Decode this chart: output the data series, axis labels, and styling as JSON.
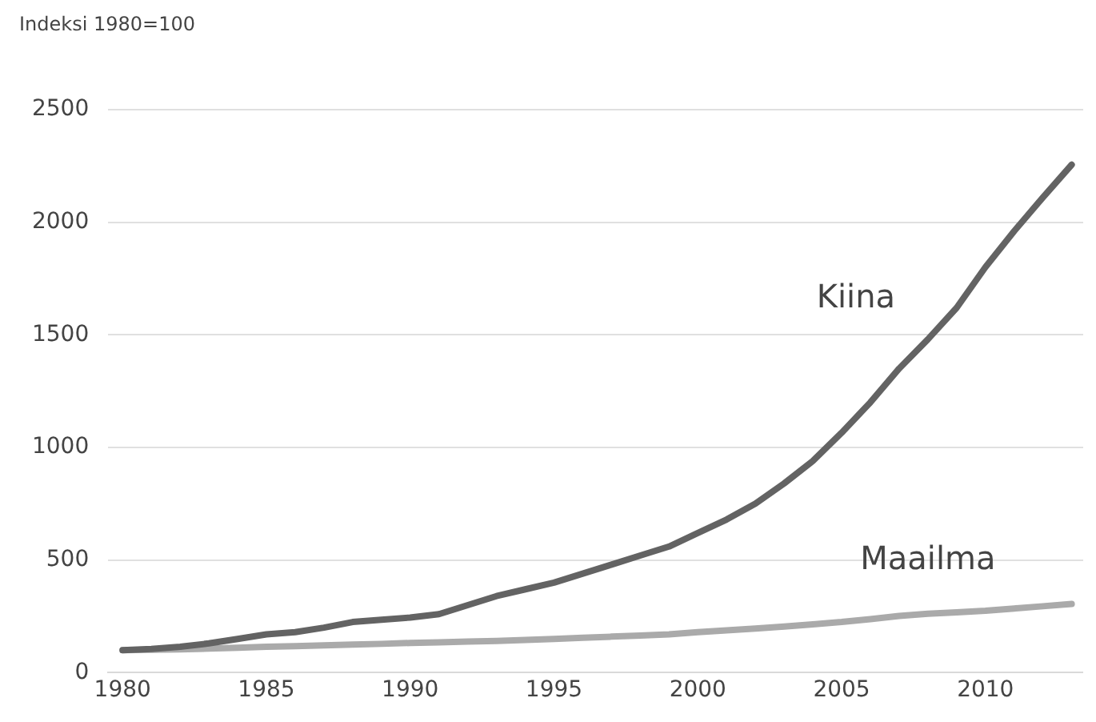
{
  "chart_data": {
    "type": "line",
    "ylabel": "Indeksi 1980=100",
    "x": [
      1980,
      1981,
      1982,
      1983,
      1984,
      1985,
      1986,
      1987,
      1988,
      1989,
      1990,
      1991,
      1992,
      1993,
      1994,
      1995,
      1996,
      1997,
      1998,
      1999,
      2000,
      2001,
      2002,
      2003,
      2004,
      2005,
      2006,
      2007,
      2008,
      2009,
      2010,
      2011,
      2012,
      2013
    ],
    "series": [
      {
        "name": "Kiina",
        "color": "#636363",
        "values": [
          100,
          105,
          115,
          130,
          150,
          170,
          180,
          200,
          225,
          235,
          245,
          260,
          300,
          340,
          370,
          400,
          440,
          480,
          520,
          560,
          620,
          680,
          750,
          840,
          940,
          1065,
          1200,
          1350,
          1480,
          1620,
          1800,
          1960,
          2110,
          2255
        ]
      },
      {
        "name": "Maailma",
        "color": "#aaaaaa",
        "values": [
          100,
          102,
          104,
          107,
          111,
          115,
          118,
          121,
          125,
          128,
          132,
          135,
          138,
          141,
          145,
          150,
          155,
          160,
          165,
          170,
          180,
          188,
          196,
          205,
          215,
          225,
          238,
          252,
          262,
          268,
          275,
          285,
          295,
          305
        ]
      }
    ],
    "xlim": [
      1979.5,
      2013.4
    ],
    "xticks": [
      1980,
      1985,
      1990,
      1995,
      2000,
      2005,
      2010
    ],
    "ylim": [
      0,
      2500
    ],
    "yticks": [
      0,
      500,
      1000,
      1500,
      2000,
      2500
    ],
    "grid": "y",
    "legend": false,
    "marker": "none",
    "line_style": "solid"
  }
}
